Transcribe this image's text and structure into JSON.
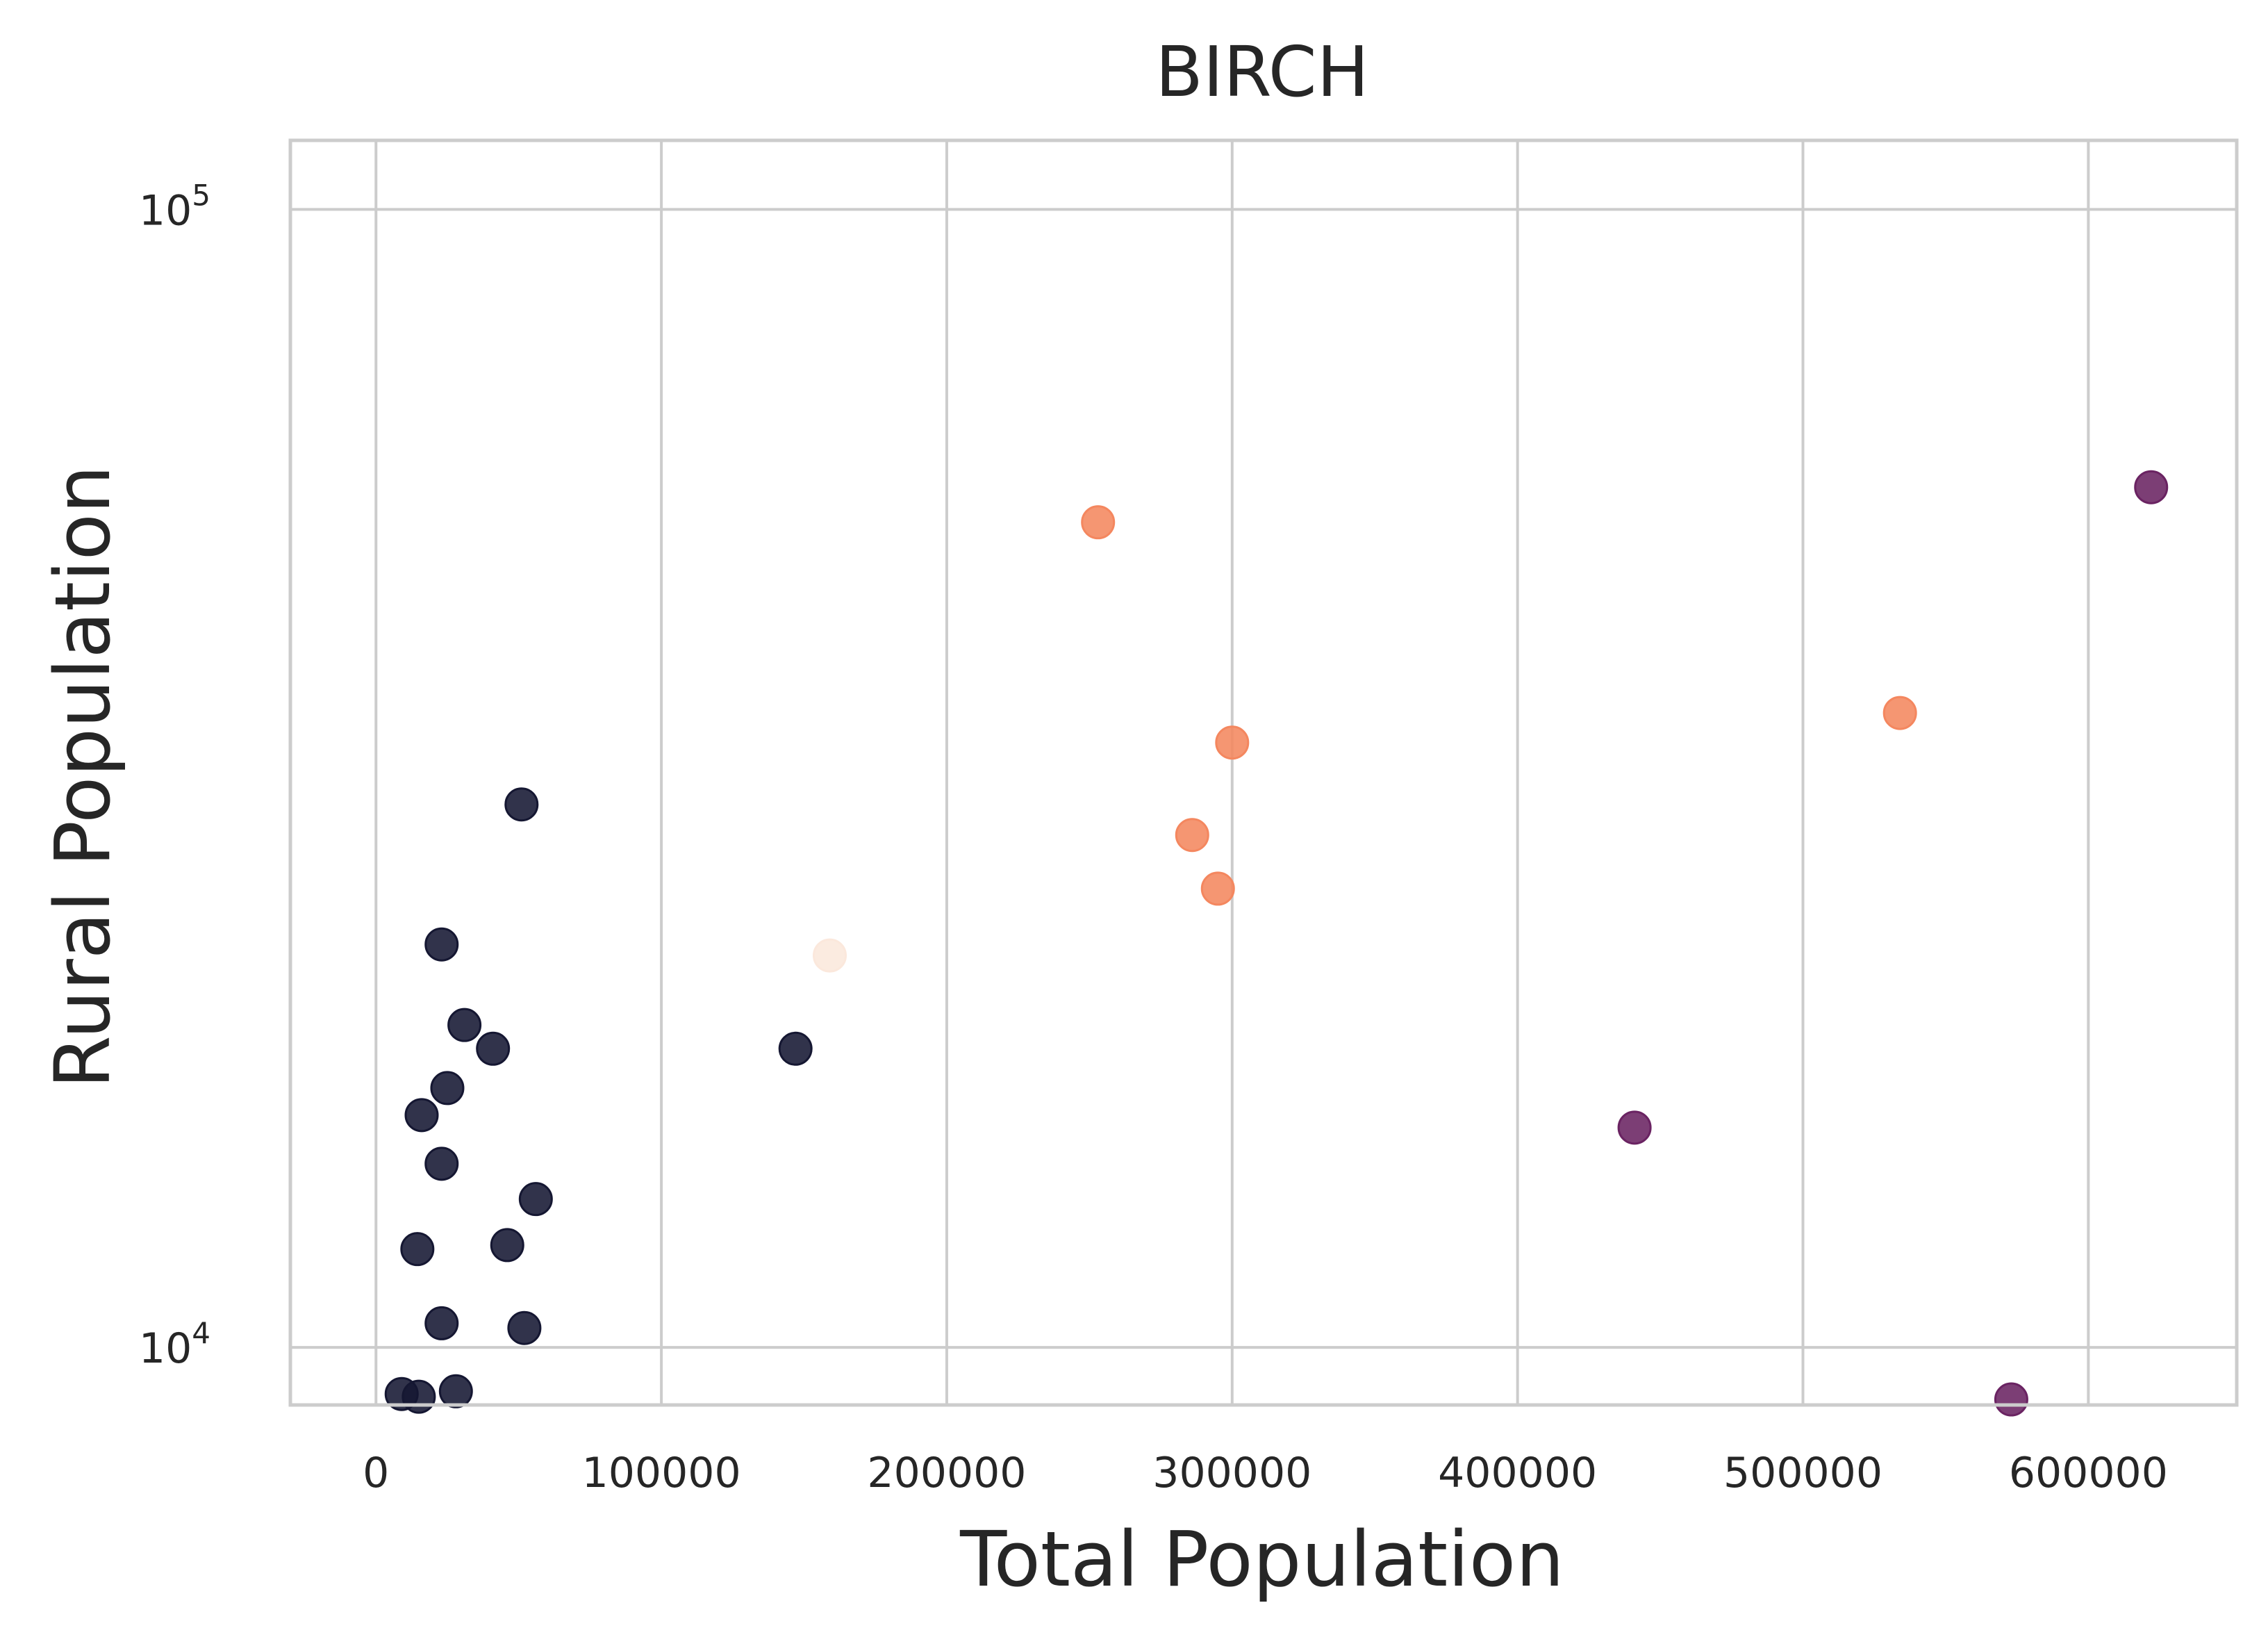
{
  "chart_data": {
    "type": "scatter",
    "title": "BIRCH",
    "xlabel": "Total Population",
    "ylabel": "Rural Population",
    "xlim": [
      -30000,
      652000
    ],
    "ylim": [
      8900,
      115000
    ],
    "yscale": "log",
    "grid": true,
    "x_ticks": [
      0,
      100000,
      200000,
      300000,
      400000,
      500000,
      600000
    ],
    "x_tick_labels": [
      "0",
      "100000",
      "200000",
      "300000",
      "400000",
      "500000",
      "600000"
    ],
    "y_ticks": [
      10000,
      100000
    ],
    "y_tick_labels": [
      {
        "base": "10",
        "exp": "4"
      },
      {
        "base": "10",
        "exp": "5"
      }
    ],
    "colors": {
      "cluster_0": "#151732",
      "cluster_1": "#f4875f",
      "cluster_2": "#fbe8dc",
      "cluster_3": "#6a2362"
    },
    "points": [
      {
        "x": 9000,
        "y": 9100,
        "cluster": 0
      },
      {
        "x": 15000,
        "y": 9050,
        "cluster": 0
      },
      {
        "x": 28000,
        "y": 9150,
        "cluster": 0
      },
      {
        "x": 23000,
        "y": 10500,
        "cluster": 0
      },
      {
        "x": 52000,
        "y": 10400,
        "cluster": 0
      },
      {
        "x": 14500,
        "y": 12200,
        "cluster": 0
      },
      {
        "x": 46000,
        "y": 12300,
        "cluster": 0
      },
      {
        "x": 56000,
        "y": 13500,
        "cluster": 0
      },
      {
        "x": 23000,
        "y": 14500,
        "cluster": 0
      },
      {
        "x": 16000,
        "y": 16000,
        "cluster": 0
      },
      {
        "x": 25000,
        "y": 16900,
        "cluster": 0
      },
      {
        "x": 41000,
        "y": 18300,
        "cluster": 0
      },
      {
        "x": 31000,
        "y": 19200,
        "cluster": 0
      },
      {
        "x": 23000,
        "y": 22600,
        "cluster": 0
      },
      {
        "x": 51000,
        "y": 30000,
        "cluster": 0
      },
      {
        "x": 147000,
        "y": 18300,
        "cluster": 0
      },
      {
        "x": 159000,
        "y": 22100,
        "cluster": 2
      },
      {
        "x": 253000,
        "y": 53100,
        "cluster": 1
      },
      {
        "x": 300000,
        "y": 34000,
        "cluster": 1
      },
      {
        "x": 286000,
        "y": 28200,
        "cluster": 1
      },
      {
        "x": 295000,
        "y": 25300,
        "cluster": 1
      },
      {
        "x": 534000,
        "y": 36100,
        "cluster": 1
      },
      {
        "x": 622000,
        "y": 57000,
        "cluster": 3
      },
      {
        "x": 441000,
        "y": 15600,
        "cluster": 3
      },
      {
        "x": 573000,
        "y": 9000,
        "cluster": 3
      }
    ]
  }
}
